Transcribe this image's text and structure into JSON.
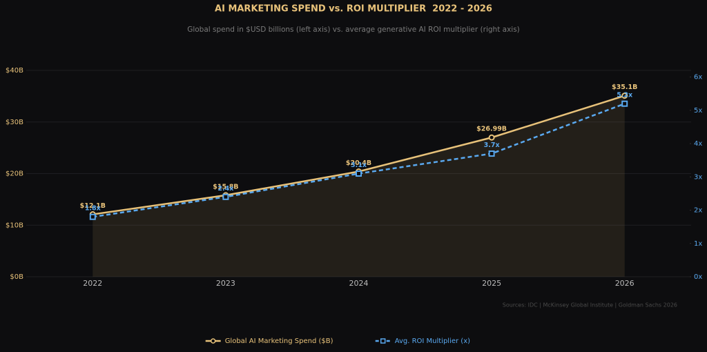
{
  "chart_data": {
    "type": "line",
    "title": "AI MARKETING SPEND vs. ROI MULTIPLIER  2022 - 2026",
    "subtitle": "Global spend in $USD billions (left axis) vs. average generative AI ROI multiplier (right axis)",
    "source": "Sources: IDC | McKinsey Global Institute | Goldman Sachs 2026",
    "categories": [
      "2022",
      "2023",
      "2024",
      "2025",
      "2026"
    ],
    "series": [
      {
        "name": "Global AI Marketing Spend ($B)",
        "color": "#e8c27a",
        "axis": "y",
        "fill_area": true,
        "values": [
          12.1,
          15.8,
          20.4,
          26.99,
          35.1
        ],
        "value_labels": [
          "$12.1B",
          "$15.8B",
          "$20.4B",
          "$26.99B",
          "$35.1B"
        ]
      },
      {
        "name": "Avg. ROI Multiplier (x)",
        "color": "#5aa9f0",
        "axis": "y2",
        "dashed": true,
        "values": [
          1.8,
          2.4,
          3.1,
          3.7,
          5.2
        ],
        "value_labels": [
          "1.8x",
          "2.4x",
          "3.1x",
          "3.7x",
          "5.2x"
        ]
      }
    ],
    "ylim": [
      0,
      40
    ],
    "yticks": [
      {
        "value": 0,
        "label": "$0B"
      },
      {
        "value": 10,
        "label": "$10B"
      },
      {
        "value": 20,
        "label": "$20B"
      },
      {
        "value": 30,
        "label": "$30B"
      },
      {
        "value": 40,
        "label": "$40B"
      }
    ],
    "y2lim": [
      0,
      6.2
    ],
    "y2ticks": [
      {
        "value": 0,
        "label": "0x"
      },
      {
        "value": 1,
        "label": "1x"
      },
      {
        "value": 2,
        "label": "2x"
      },
      {
        "value": 3,
        "label": "3x"
      },
      {
        "value": 4,
        "label": "4x"
      },
      {
        "value": 5,
        "label": "5x"
      },
      {
        "value": 6,
        "label": "6x"
      }
    ],
    "grid": true,
    "legend": "bottom"
  }
}
